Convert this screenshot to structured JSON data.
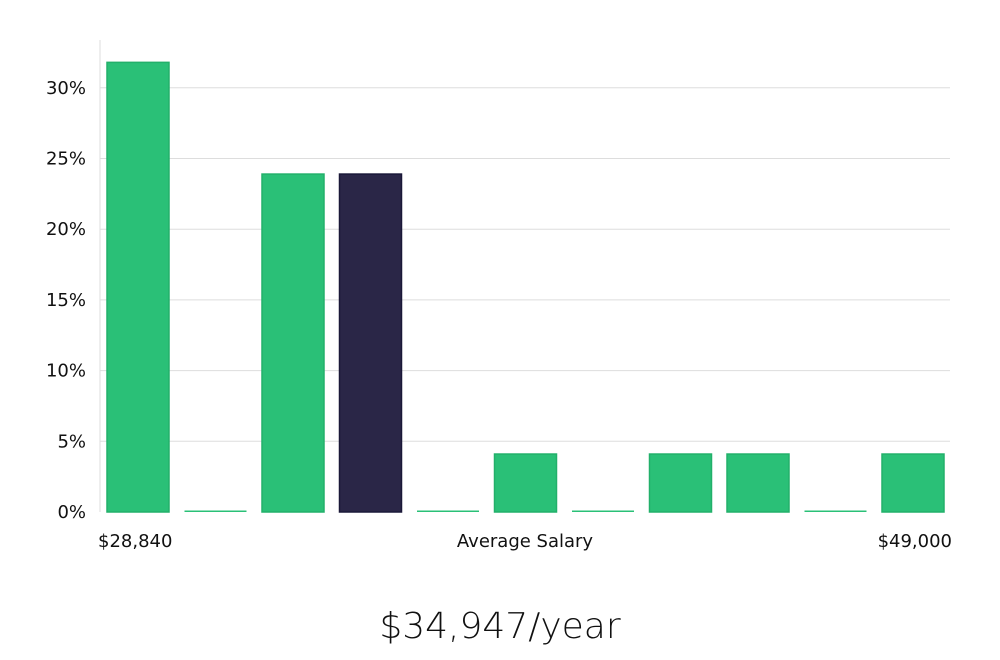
{
  "chart_data": {
    "type": "bar",
    "categories": [
      "1",
      "2",
      "3",
      "4",
      "5",
      "6",
      "7",
      "8",
      "9",
      "10",
      "11"
    ],
    "values": [
      31.8,
      0,
      23.9,
      23.9,
      0,
      4.1,
      0,
      4.1,
      4.1,
      0,
      4.1
    ],
    "highlight_index": 3,
    "ylim": [
      0,
      32
    ],
    "y_ticks": [
      "0%",
      "5%",
      "10%",
      "15%",
      "20%",
      "25%",
      "30%"
    ],
    "y_tick_values": [
      0,
      5,
      10,
      15,
      20,
      25,
      30
    ],
    "x_min_label": "$28,840",
    "x_max_label": "$49,000",
    "xlabel": "Average Salary",
    "grid": true,
    "colors": {
      "bar": "#2ac077",
      "highlight": "#2a2647",
      "grid": "#dddddd",
      "axis": "#cccccc"
    }
  },
  "summary": {
    "average_salary": "$34,947/year"
  }
}
